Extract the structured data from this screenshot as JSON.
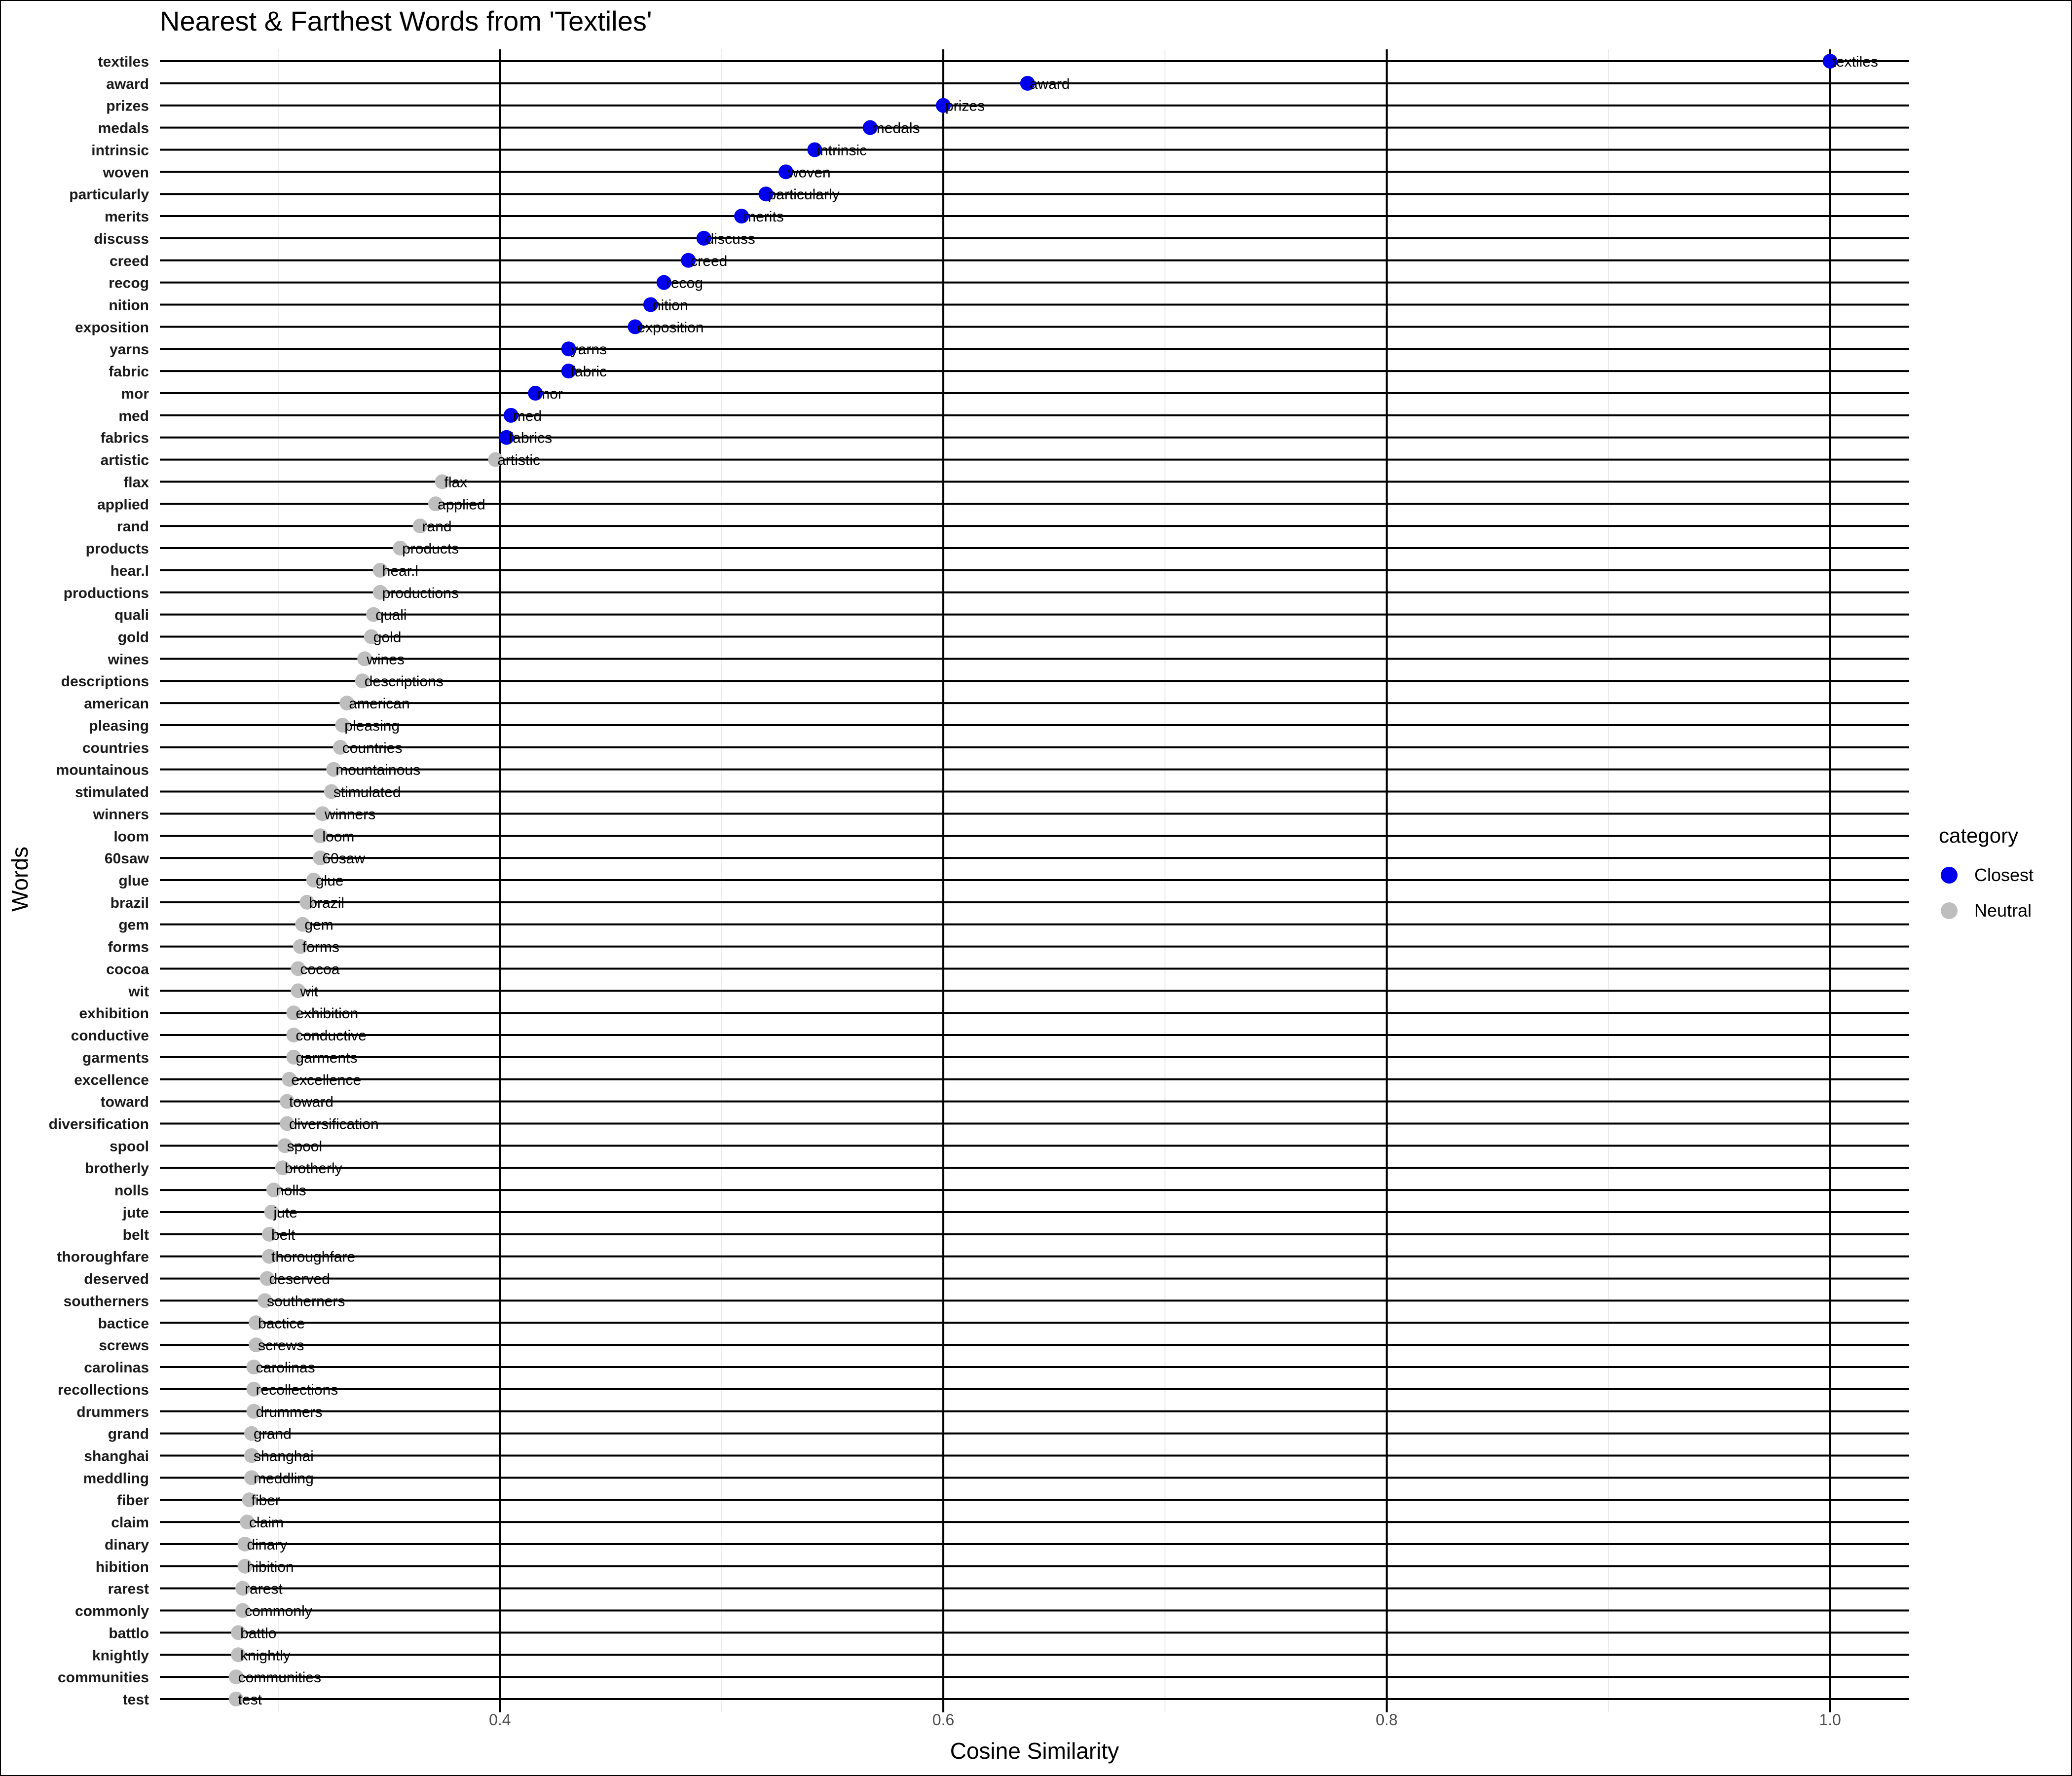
{
  "chart_data": {
    "type": "scatter",
    "title": "Nearest & Farthest Words from 'Textiles'",
    "xlabel": "Cosine Similarity",
    "ylabel": "Words",
    "xlim": [
      0.2466,
      1.0357
    ],
    "xticks": [
      0.4,
      0.6,
      0.8,
      1.0
    ],
    "xtick_labels": [
      "0.4",
      "0.6",
      "0.8",
      "1.0"
    ],
    "grid": true,
    "legend": {
      "title": "category",
      "position": "right",
      "entries": [
        {
          "name": "Closest",
          "color": "#0000ee"
        },
        {
          "name": "Neutral",
          "color": "#bebebe"
        }
      ]
    },
    "colors": {
      "Closest": "#0000ee",
      "Neutral": "#bebebe"
    },
    "words": [
      {
        "word": "textiles",
        "value": 1.0,
        "category": "Closest"
      },
      {
        "word": "award",
        "value": 0.638,
        "category": "Closest"
      },
      {
        "word": "prizes",
        "value": 0.6,
        "category": "Closest"
      },
      {
        "word": "medals",
        "value": 0.567,
        "category": "Closest"
      },
      {
        "word": "intrinsic",
        "value": 0.542,
        "category": "Closest"
      },
      {
        "word": "woven",
        "value": 0.529,
        "category": "Closest"
      },
      {
        "word": "particularly",
        "value": 0.52,
        "category": "Closest"
      },
      {
        "word": "merits",
        "value": 0.509,
        "category": "Closest"
      },
      {
        "word": "discuss",
        "value": 0.492,
        "category": "Closest"
      },
      {
        "word": "creed",
        "value": 0.485,
        "category": "Closest"
      },
      {
        "word": "recog",
        "value": 0.474,
        "category": "Closest"
      },
      {
        "word": "nition",
        "value": 0.468,
        "category": "Closest"
      },
      {
        "word": "exposition",
        "value": 0.461,
        "category": "Closest"
      },
      {
        "word": "yarns",
        "value": 0.431,
        "category": "Closest"
      },
      {
        "word": "fabric",
        "value": 0.431,
        "category": "Closest"
      },
      {
        "word": "mor",
        "value": 0.416,
        "category": "Closest"
      },
      {
        "word": "med",
        "value": 0.405,
        "category": "Closest"
      },
      {
        "word": "fabrics",
        "value": 0.403,
        "category": "Closest"
      },
      {
        "word": "artistic",
        "value": 0.398,
        "category": "Neutral"
      },
      {
        "word": "flax",
        "value": 0.374,
        "category": "Neutral"
      },
      {
        "word": "applied",
        "value": 0.371,
        "category": "Neutral"
      },
      {
        "word": "rand",
        "value": 0.364,
        "category": "Neutral"
      },
      {
        "word": "products",
        "value": 0.355,
        "category": "Neutral"
      },
      {
        "word": "hear.l",
        "value": 0.346,
        "category": "Neutral"
      },
      {
        "word": "productions",
        "value": 0.346,
        "category": "Neutral"
      },
      {
        "word": "quali",
        "value": 0.343,
        "category": "Neutral"
      },
      {
        "word": "gold",
        "value": 0.342,
        "category": "Neutral"
      },
      {
        "word": "wines",
        "value": 0.339,
        "category": "Neutral"
      },
      {
        "word": "descriptions",
        "value": 0.338,
        "category": "Neutral"
      },
      {
        "word": "american",
        "value": 0.331,
        "category": "Neutral"
      },
      {
        "word": "pleasing",
        "value": 0.329,
        "category": "Neutral"
      },
      {
        "word": "countries",
        "value": 0.328,
        "category": "Neutral"
      },
      {
        "word": "mountainous",
        "value": 0.325,
        "category": "Neutral"
      },
      {
        "word": "stimulated",
        "value": 0.324,
        "category": "Neutral"
      },
      {
        "word": "winners",
        "value": 0.32,
        "category": "Neutral"
      },
      {
        "word": "loom",
        "value": 0.319,
        "category": "Neutral"
      },
      {
        "word": "60saw",
        "value": 0.319,
        "category": "Neutral"
      },
      {
        "word": "glue",
        "value": 0.316,
        "category": "Neutral"
      },
      {
        "word": "brazil",
        "value": 0.313,
        "category": "Neutral"
      },
      {
        "word": "gem",
        "value": 0.311,
        "category": "Neutral"
      },
      {
        "word": "forms",
        "value": 0.31,
        "category": "Neutral"
      },
      {
        "word": "cocoa",
        "value": 0.309,
        "category": "Neutral"
      },
      {
        "word": "wit",
        "value": 0.309,
        "category": "Neutral"
      },
      {
        "word": "exhibition",
        "value": 0.307,
        "category": "Neutral"
      },
      {
        "word": "conductive",
        "value": 0.307,
        "category": "Neutral"
      },
      {
        "word": "garments",
        "value": 0.307,
        "category": "Neutral"
      },
      {
        "word": "excellence",
        "value": 0.305,
        "category": "Neutral"
      },
      {
        "word": "toward",
        "value": 0.304,
        "category": "Neutral"
      },
      {
        "word": "diversification",
        "value": 0.304,
        "category": "Neutral"
      },
      {
        "word": "spool",
        "value": 0.303,
        "category": "Neutral"
      },
      {
        "word": "brotherly",
        "value": 0.302,
        "category": "Neutral"
      },
      {
        "word": "nolls",
        "value": 0.298,
        "category": "Neutral"
      },
      {
        "word": "jute",
        "value": 0.297,
        "category": "Neutral"
      },
      {
        "word": "belt",
        "value": 0.296,
        "category": "Neutral"
      },
      {
        "word": "thoroughfare",
        "value": 0.296,
        "category": "Neutral"
      },
      {
        "word": "deserved",
        "value": 0.295,
        "category": "Neutral"
      },
      {
        "word": "southerners",
        "value": 0.294,
        "category": "Neutral"
      },
      {
        "word": "bactice",
        "value": 0.29,
        "category": "Neutral"
      },
      {
        "word": "screws",
        "value": 0.29,
        "category": "Neutral"
      },
      {
        "word": "carolinas",
        "value": 0.289,
        "category": "Neutral"
      },
      {
        "word": "recollections",
        "value": 0.289,
        "category": "Neutral"
      },
      {
        "word": "drummers",
        "value": 0.289,
        "category": "Neutral"
      },
      {
        "word": "grand",
        "value": 0.288,
        "category": "Neutral"
      },
      {
        "word": "shanghai",
        "value": 0.288,
        "category": "Neutral"
      },
      {
        "word": "meddling",
        "value": 0.288,
        "category": "Neutral"
      },
      {
        "word": "fiber",
        "value": 0.287,
        "category": "Neutral"
      },
      {
        "word": "claim",
        "value": 0.286,
        "category": "Neutral"
      },
      {
        "word": "dinary",
        "value": 0.285,
        "category": "Neutral"
      },
      {
        "word": "hibition",
        "value": 0.285,
        "category": "Neutral"
      },
      {
        "word": "rarest",
        "value": 0.284,
        "category": "Neutral"
      },
      {
        "word": "commonly",
        "value": 0.284,
        "category": "Neutral"
      },
      {
        "word": "battlo",
        "value": 0.282,
        "category": "Neutral"
      },
      {
        "word": "knightly",
        "value": 0.282,
        "category": "Neutral"
      },
      {
        "word": "communities",
        "value": 0.281,
        "category": "Neutral"
      },
      {
        "word": "test",
        "value": 0.281,
        "category": "Neutral"
      }
    ]
  }
}
